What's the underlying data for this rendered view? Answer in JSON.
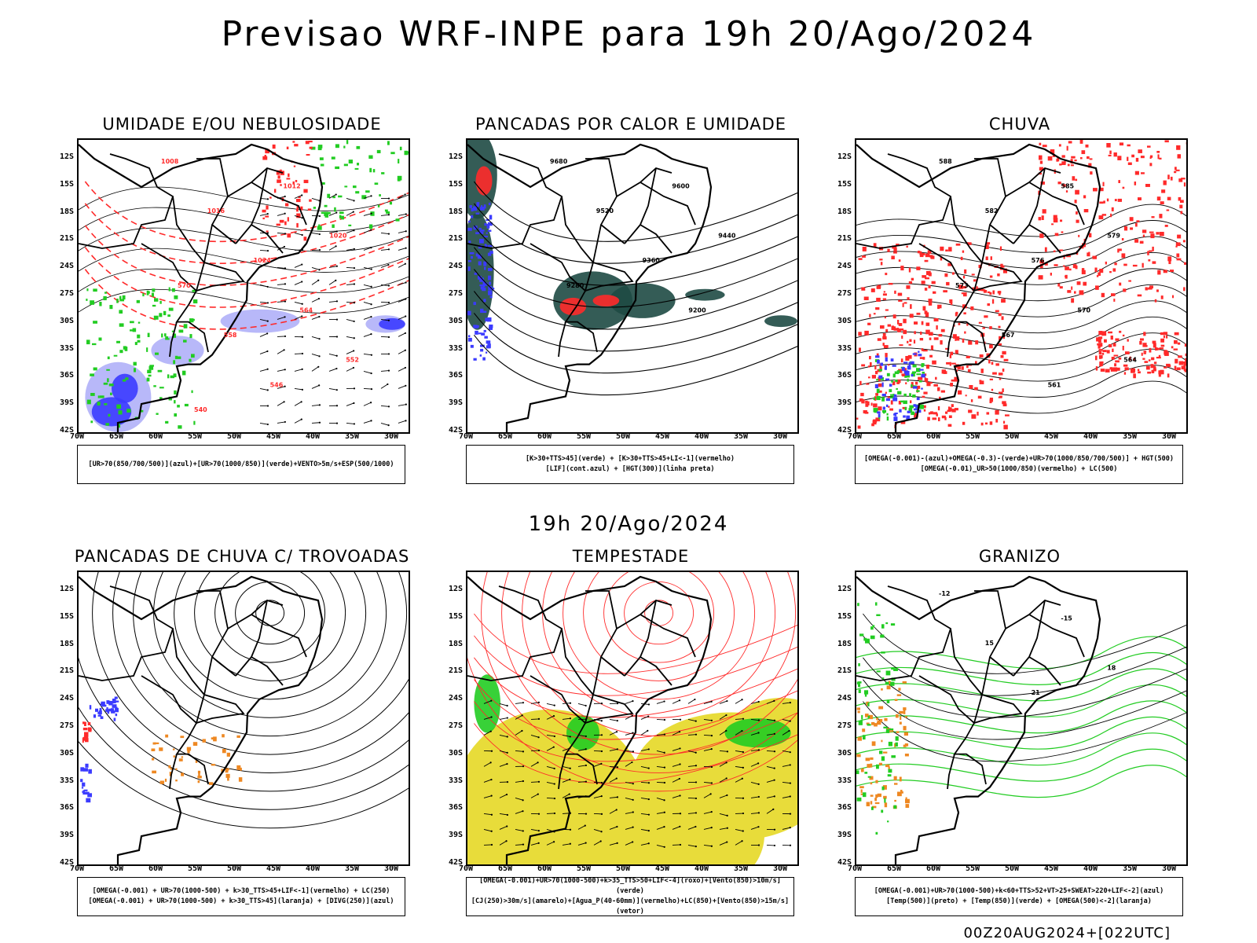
{
  "title": "Previsao WRF-INPE  para 19h 20/Ago/2024",
  "mid_title": "19h 20/Ago/2024",
  "footer": "00Z20AUG2024+[022UTC]",
  "latitudes": [
    "12S",
    "15S",
    "18S",
    "21S",
    "24S",
    "27S",
    "30S",
    "33S",
    "36S",
    "39S",
    "42S"
  ],
  "longitudes": [
    "70W",
    "65W",
    "60W",
    "55W",
    "50W",
    "45W",
    "40W",
    "35W",
    "30W"
  ],
  "colors": {
    "blue": "#3b3bff",
    "lavender": "#b0b0f8",
    "green": "#22cc22",
    "red": "#ff2a2a",
    "dark_teal": "#1e4a44",
    "yellow": "#e8dc3a",
    "orange": "#ee8822"
  },
  "panels": [
    {
      "title": "UMIDADE E/OU NEBULOSIDADE",
      "legend": [
        "[UR>70(850/700/500)](azul)+[UR>70(1000/850)](verde)+VENTO>5m/s+ESP(500/1000)"
      ],
      "contour_labels": [
        "1008",
        "1012",
        "1016",
        "1020",
        "1024",
        "570",
        "564",
        "558",
        "552",
        "546",
        "540"
      ]
    },
    {
      "title": "PANCADAS POR CALOR E UMIDADE",
      "legend": [
        "[K>30+TTS>45](verde) + [K>30+TTS>45+LI<-1](vermelho)",
        "[LIF](cont.azul) + [HGT(300)](linha preta)"
      ],
      "contour_labels": [
        "9680",
        "9600",
        "9520",
        "9440",
        "9360",
        "9280",
        "9200"
      ]
    },
    {
      "title": "CHUVA",
      "legend": [
        "[OMEGA(-0.001)-(azul)+OMEGA(-0.3)-(verde)+UR>70(1000/850/700/500)] + HGT(500)",
        "[OMEGA(-0.01)_UR>50(1000/850)(vermelho) + LC(500)"
      ],
      "contour_labels": [
        "588",
        "585",
        "582",
        "579",
        "576",
        "573",
        "570",
        "567",
        "564",
        "561"
      ]
    },
    {
      "title": "PANCADAS DE CHUVA C/ TROVOADAS",
      "legend": [
        "[OMEGA(-0.001) + UR>70(1000-500) + k>30_TTS>45+LIF<-1](vermelho) + LC(250)",
        "[OMEGA(-0.001) + UR>70(1000-500) + k>30_TTS>45](laranja) + [DIVG(250)](azul)"
      ],
      "contour_labels": []
    },
    {
      "title": "TEMPESTADE",
      "legend": [
        "[OMEGA(-0.001)+UR>70(1000-500)+k>35_TTS>50+LIF<-4](roxo)+[Vento(850)>10m/s](verde)",
        "[CJ(250)>30m/s](amarelo)+[Agua_P(40-60mm)](vermelho)+LC(850)+[Vento(850)>15m/s](vetor)"
      ],
      "contour_labels": []
    },
    {
      "title": "GRANIZO",
      "legend": [
        "[OMEGA(-0.001)+UR>70(1000-500)+k<60+TTS>52+VT>25+SWEAT>220+LIF<-2](azul)",
        "[Temp(500)](preto) + [Temp(850)](verde) + [OMEGA(500)<-2](laranja)"
      ],
      "contour_labels": [
        "-12",
        "-15",
        "15",
        "18",
        "21"
      ]
    }
  ]
}
